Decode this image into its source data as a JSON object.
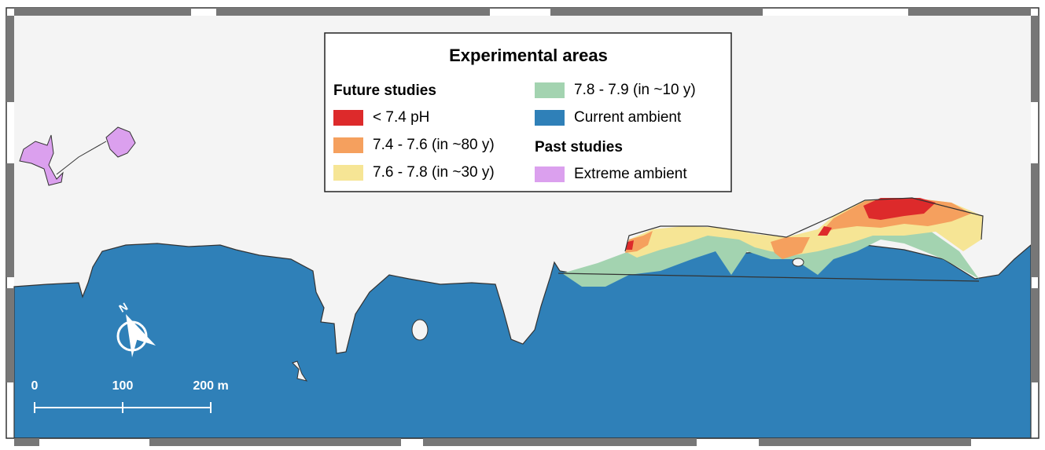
{
  "legend": {
    "title": "Experimental areas",
    "future_heading": "Future studies",
    "past_heading": "Past studies",
    "items": [
      {
        "label": "< 7.4 pH",
        "color": "#dd2a2b"
      },
      {
        "label": "7.4 - 7.6 (in ~80 y)",
        "color": "#f5a05e"
      },
      {
        "label": "7.6 - 7.8 (in ~30 y)",
        "color": "#f6e595"
      },
      {
        "label": "7.8 - 7.9 (in ~10 y)",
        "color": "#a3d3b0"
      },
      {
        "label": "Current ambient",
        "color": "#2f80b8"
      },
      {
        "label": "Extreme ambient",
        "color": "#dba0ee"
      }
    ]
  },
  "scale": {
    "labels": [
      "0",
      "100",
      "200 m"
    ]
  },
  "north": "N"
}
